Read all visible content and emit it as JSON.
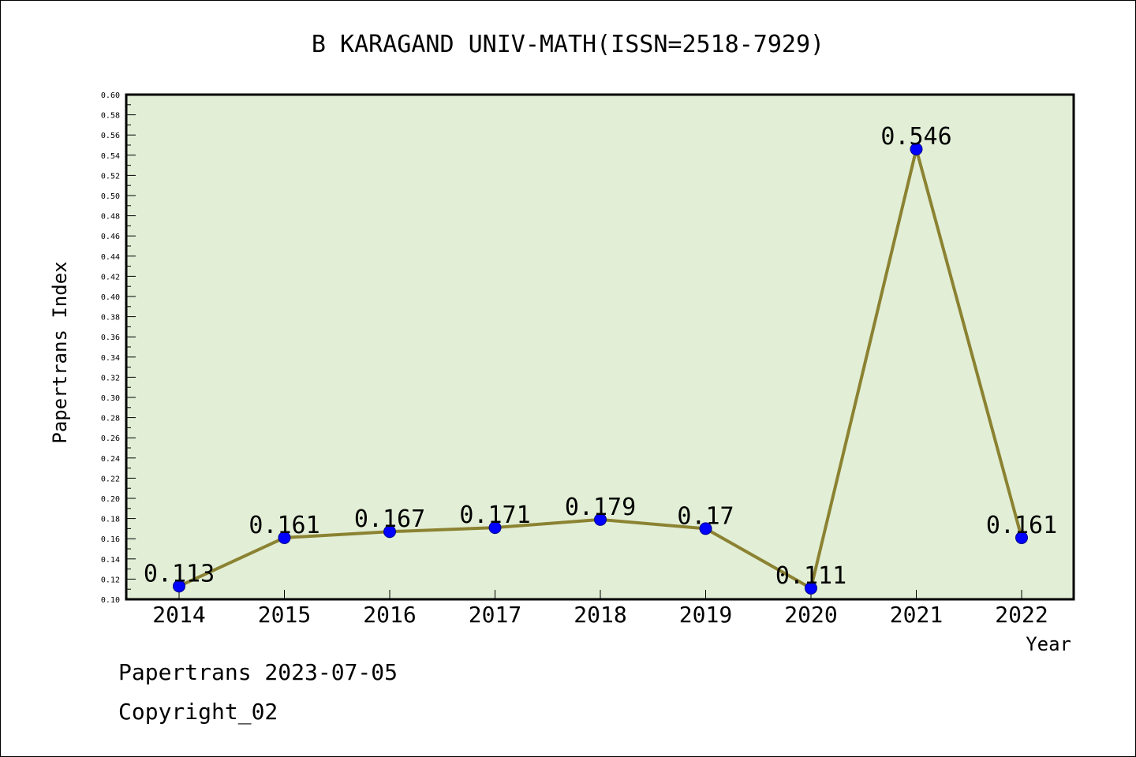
{
  "chart_data": {
    "type": "line",
    "title": "B KARAGAND UNIV-MATH(ISSN=2518-7929)",
    "xlabel": "Year",
    "ylabel": "Papertrans Index",
    "categories": [
      "2014",
      "2015",
      "2016",
      "2017",
      "2018",
      "2019",
      "2020",
      "2021",
      "2022"
    ],
    "series": [
      {
        "values": [
          0.113,
          0.161,
          0.167,
          0.171,
          0.179,
          0.17,
          0.111,
          0.546,
          0.161
        ],
        "labels": [
          "0.113",
          "0.161",
          "0.167",
          "0.171",
          "0.179",
          "0.17",
          "0.111",
          "0.546",
          "0.161"
        ]
      }
    ],
    "ylim": [
      0.1,
      0.6
    ],
    "yticks": [
      "0.10",
      "0.12",
      "0.14",
      "0.16",
      "0.18",
      "0.20",
      "0.22",
      "0.24",
      "0.26",
      "0.28",
      "0.30",
      "0.32",
      "0.34",
      "0.36",
      "0.38",
      "0.40",
      "0.42",
      "0.44",
      "0.46",
      "0.48",
      "0.50",
      "0.52",
      "0.54",
      "0.56",
      "0.58",
      "0.60"
    ],
    "grid": false,
    "colors": {
      "plot_background": "#e2efd6",
      "line": "#8b8232",
      "marker": "#0000ff"
    }
  },
  "footer": {
    "source": "Papertrans 2023-07-05",
    "copyright": "Copyright_02"
  }
}
